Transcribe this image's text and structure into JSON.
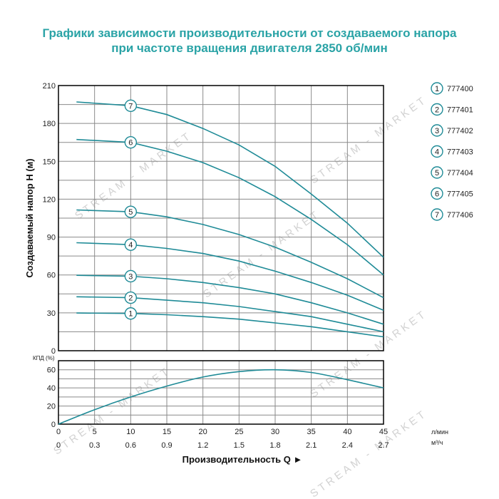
{
  "title": {
    "line1": "Графики зависимости производительности от создаваемого напора",
    "line2": "при частоте вращения двигателя 2850 об/мин"
  },
  "watermark": "STREAM - MARKET",
  "colors": {
    "accent": "#2aa3a6",
    "curve": "#1f8b97",
    "grid": "#8a8a8a",
    "axis": "#000000"
  },
  "chart_data": [
    {
      "type": "line",
      "ylabel": "Создаваемый напор H (м)",
      "ylim": [
        0,
        210
      ],
      "y_ticks": [
        "0",
        "30",
        "60",
        "90",
        "120",
        "150",
        "180",
        "210"
      ],
      "xlim": [
        0,
        45
      ],
      "grid": true,
      "legend_position": "right",
      "series": [
        {
          "name": "777400",
          "marker": "1",
          "x": [
            0,
            10,
            15,
            20,
            25,
            30,
            35,
            40,
            45
          ],
          "values": [
            30,
            29.5,
            28.5,
            27,
            25,
            22,
            19,
            15,
            11
          ]
        },
        {
          "name": "777401",
          "marker": "2",
          "x": [
            0,
            10,
            15,
            20,
            25,
            30,
            35,
            40,
            45
          ],
          "values": [
            43,
            42,
            40,
            38,
            35,
            31,
            27,
            21,
            15
          ]
        },
        {
          "name": "777402",
          "marker": "3",
          "x": [
            0,
            10,
            15,
            20,
            25,
            30,
            35,
            40,
            45
          ],
          "values": [
            60,
            59,
            57,
            54,
            50,
            45,
            38,
            30,
            21
          ]
        },
        {
          "name": "777403",
          "marker": "4",
          "x": [
            0,
            10,
            15,
            20,
            25,
            30,
            35,
            40,
            45
          ],
          "values": [
            86,
            84,
            81,
            77,
            71,
            63,
            54,
            44,
            32
          ]
        },
        {
          "name": "777404",
          "marker": "5",
          "x": [
            0,
            10,
            15,
            20,
            25,
            30,
            35,
            40,
            45
          ],
          "values": [
            112,
            110,
            106,
            100,
            92,
            82,
            70,
            57,
            42
          ]
        },
        {
          "name": "777405",
          "marker": "6",
          "x": [
            0,
            10,
            15,
            20,
            25,
            30,
            35,
            40,
            45
          ],
          "values": [
            168,
            165,
            158,
            149,
            137,
            122,
            104,
            84,
            60
          ]
        },
        {
          "name": "777406",
          "marker": "7",
          "x": [
            0,
            10,
            15,
            20,
            25,
            30,
            35,
            40,
            45
          ],
          "values": [
            198,
            194,
            187,
            176,
            163,
            146,
            124,
            101,
            74
          ]
        }
      ]
    },
    {
      "type": "line",
      "ylabel": "КПД (%)",
      "ylim": [
        0,
        70
      ],
      "y_ticks": [
        "0",
        "20",
        "40",
        "60"
      ],
      "xlim": [
        0,
        45
      ],
      "grid": true,
      "x_ticks_lmin": [
        "0",
        "5",
        "10",
        "15",
        "20",
        "25",
        "30",
        "35",
        "40",
        "45"
      ],
      "x_unit_lmin": "л/мин",
      "x_ticks_m3h": [
        "0",
        "0.3",
        "0.6",
        "0.9",
        "1.2",
        "1.5",
        "1.8",
        "2.1",
        "2.4",
        "2.7"
      ],
      "x_unit_m3h": "м³/ч",
      "xlabel": "Производительность Q ►",
      "series": [
        {
          "x": [
            0,
            5,
            10,
            15,
            20,
            25,
            30,
            35,
            40,
            45
          ],
          "values": [
            0,
            16,
            30,
            42,
            52,
            58,
            60,
            57,
            49,
            40
          ]
        }
      ]
    }
  ]
}
